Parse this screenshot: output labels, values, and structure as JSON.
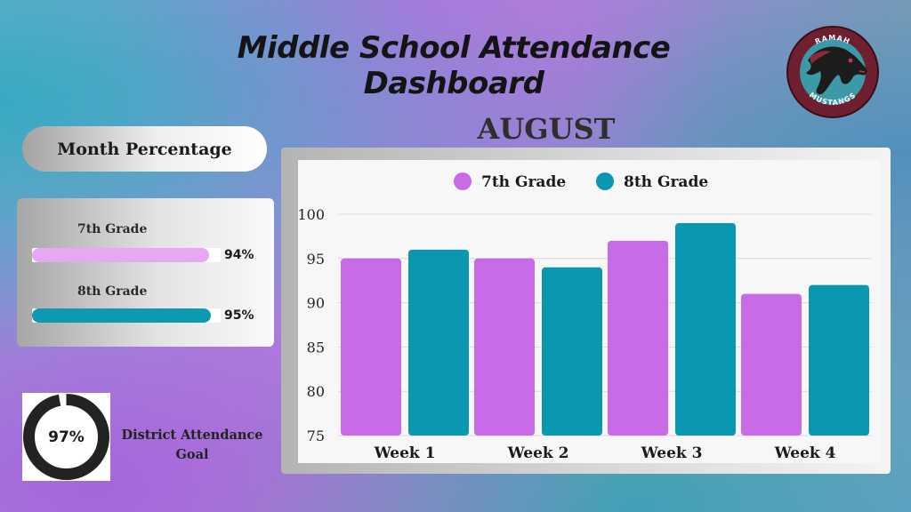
{
  "header": {
    "title": "Middle School Attendance Dashboard"
  },
  "logo": {
    "top_text": "RAMAH",
    "bottom_text": "MUSTANGS",
    "icon": "mustang-horse-head-icon",
    "colors": {
      "ring": "#6e1f30",
      "inner": "#3c9aa6",
      "head": "#1c1c1c"
    }
  },
  "month_percentage": {
    "heading": "Month Percentage",
    "grades": [
      {
        "label": "7th Grade",
        "value_text": "94%",
        "fraction": 0.94,
        "color": "#e6a8f3"
      },
      {
        "label": "8th Grade",
        "value_text": "95%",
        "fraction": 0.95,
        "color": "#0f99b0"
      }
    ]
  },
  "district_goal": {
    "value_text": "97%",
    "fraction": 0.97,
    "label": "District Attendance Goal",
    "ring_color": "#232323"
  },
  "chart_data": {
    "type": "bar",
    "title": "AUGUST",
    "categories": [
      "Week 1",
      "Week 2",
      "Week 3",
      "Week 4"
    ],
    "series": [
      {
        "name": "7th Grade",
        "values": [
          95,
          95,
          97,
          91
        ],
        "color": "#c76ce6"
      },
      {
        "name": "8th Grade",
        "values": [
          96,
          94,
          99,
          92
        ],
        "color": "#0998b0"
      }
    ],
    "ylim": [
      75,
      100
    ],
    "yticks": [
      75,
      80,
      85,
      90,
      95,
      100
    ],
    "grid": true,
    "legend": "top-center",
    "xlabel": "",
    "ylabel": ""
  }
}
